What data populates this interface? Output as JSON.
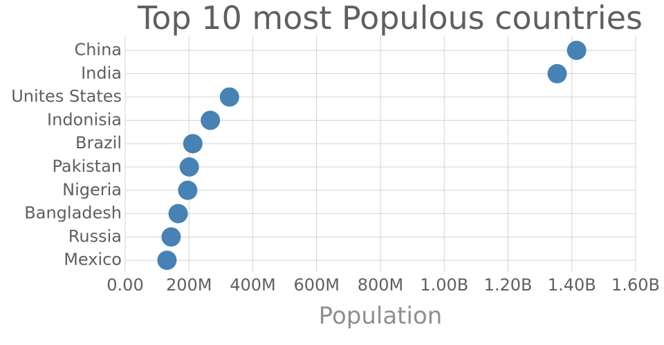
{
  "chart_data": {
    "type": "scatter",
    "title": "Top 10 most Populous countries",
    "xlabel": "Population",
    "ylabel": "",
    "xlim": [
      0,
      1600000000
    ],
    "x_ticks": [
      0,
      200000000,
      400000000,
      600000000,
      800000000,
      1000000000,
      1200000000,
      1400000000,
      1600000000
    ],
    "x_tick_labels": [
      "0.00",
      "200M",
      "400M",
      "600M",
      "800M",
      "1.00B",
      "1.20B",
      "1.40B",
      "1.60B"
    ],
    "categories": [
      "China",
      "India",
      "Unites States",
      "Indonisia",
      "Brazil",
      "Pakistan",
      "Nigeria",
      "Bangladesh",
      "Russia",
      "Mexico"
    ],
    "values": [
      1415000000,
      1354000000,
      327000000,
      267000000,
      212000000,
      201000000,
      196000000,
      166000000,
      144000000,
      131000000
    ],
    "grid": true,
    "legend": "none",
    "marker_color": "#4682b4"
  }
}
